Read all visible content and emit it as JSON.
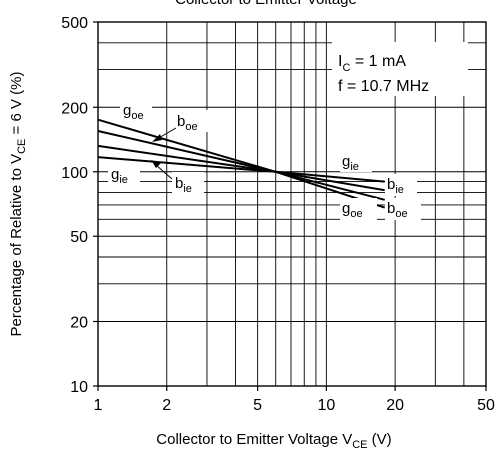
{
  "chart_data": {
    "type": "line",
    "title": "Collector to Emitter Voltage",
    "xlabel": {
      "main": "Collector to Emitter Voltage  V",
      "sub": "CE",
      "unit": "  (V)"
    },
    "ylabel": {
      "pre": "Percentage of Relative to V",
      "sub": "CE",
      "post": " = 6 V  (%)"
    },
    "x_scale": "log",
    "y_scale": "log",
    "xlim": [
      1,
      50
    ],
    "ylim": [
      10,
      500
    ],
    "grid": true,
    "x_ticks": [
      {
        "value": 1,
        "label": "1"
      },
      {
        "value": 2,
        "label": "2"
      },
      {
        "value": 5,
        "label": "5"
      },
      {
        "value": 10,
        "label": "10"
      },
      {
        "value": 20,
        "label": "20"
      },
      {
        "value": 50,
        "label": "50"
      }
    ],
    "y_ticks": [
      {
        "value": 10,
        "label": "10"
      },
      {
        "value": 20,
        "label": "20"
      },
      {
        "value": 50,
        "label": "50"
      },
      {
        "value": 100,
        "label": "100"
      },
      {
        "value": 200,
        "label": "200"
      },
      {
        "value": 500,
        "label": "500"
      }
    ],
    "x_minor": [
      3,
      4,
      6,
      7,
      8,
      9,
      30,
      40
    ],
    "y_minor": [
      30,
      40,
      60,
      70,
      80,
      90,
      300,
      400
    ],
    "conditions": [
      {
        "main": "I",
        "sub": "C",
        "rest": " = 1 mA"
      },
      {
        "main": "f = 10.7 MHz",
        "sub": "",
        "rest": ""
      }
    ],
    "series": [
      {
        "name": "g",
        "sub": "oe",
        "x": [
          1,
          6,
          18
        ],
        "y": [
          175,
          100,
          68
        ]
      },
      {
        "name": "b",
        "sub": "oe",
        "x": [
          1,
          6,
          18
        ],
        "y": [
          155,
          100,
          74
        ]
      },
      {
        "name": "b",
        "sub": "ie",
        "x": [
          1,
          6,
          18
        ],
        "y": [
          132,
          100,
          82
        ]
      },
      {
        "name": "g",
        "sub": "ie",
        "x": [
          1,
          6,
          18
        ],
        "y": [
          117,
          100,
          90
        ]
      }
    ]
  }
}
